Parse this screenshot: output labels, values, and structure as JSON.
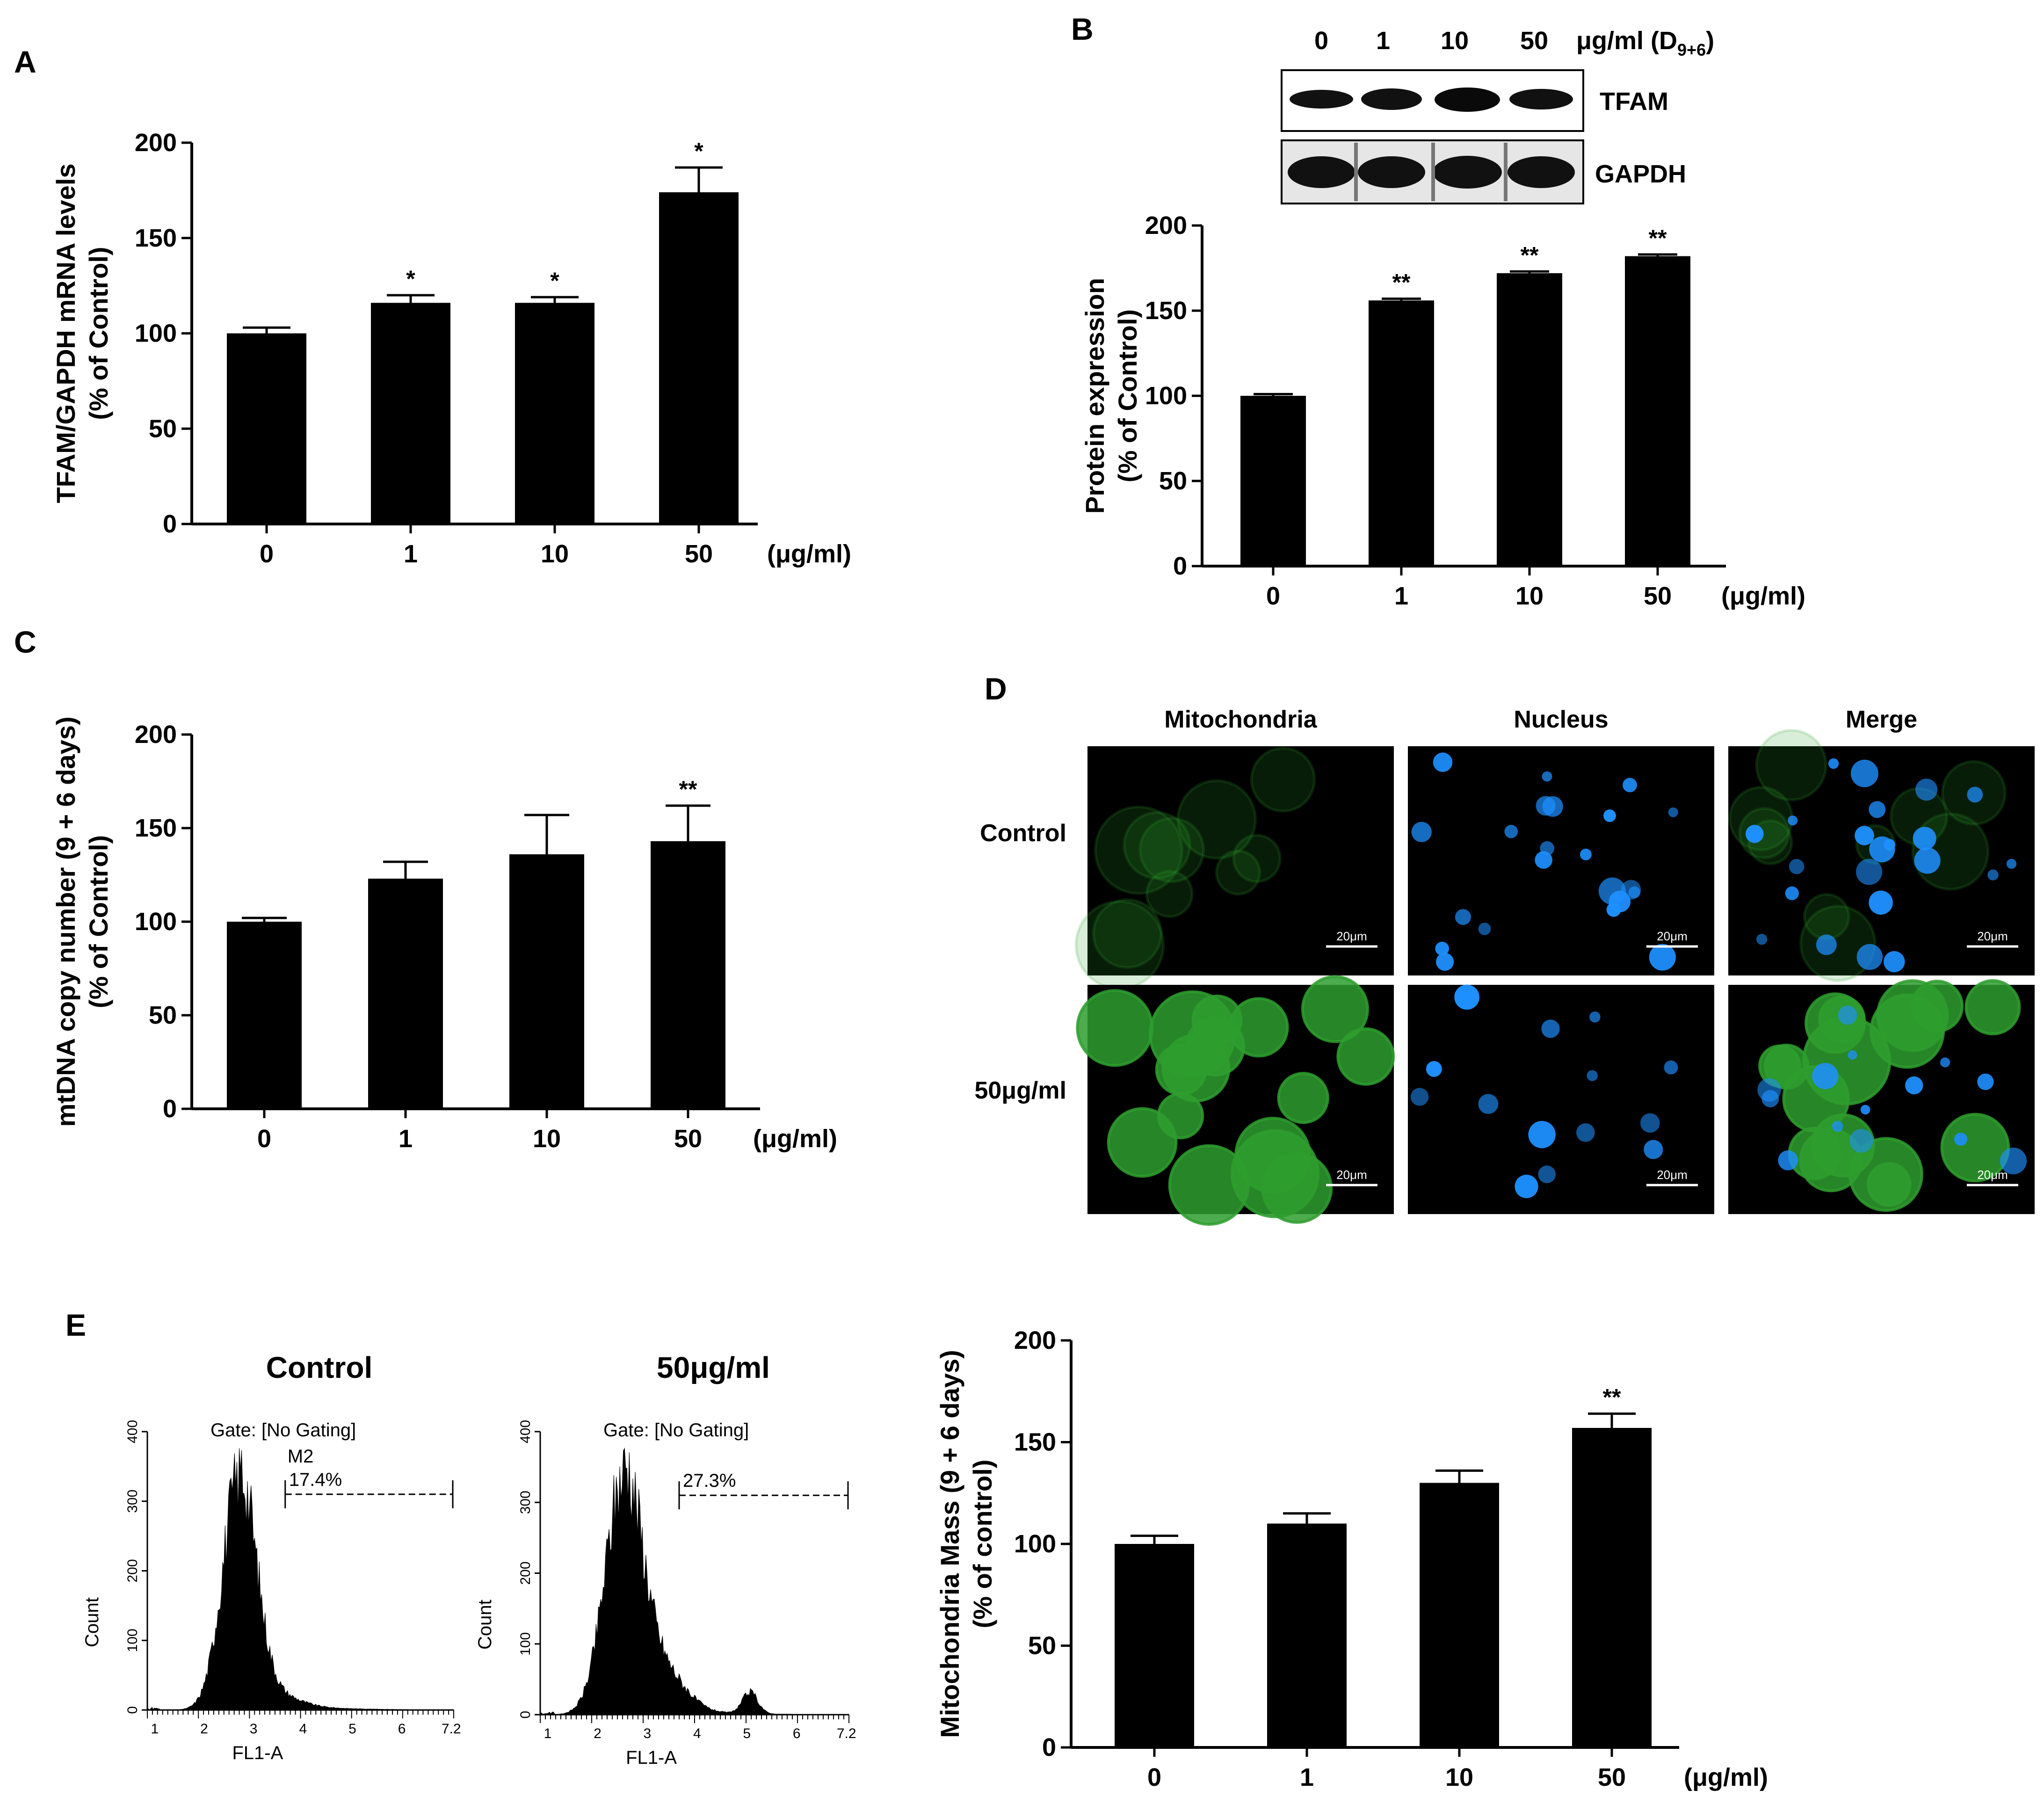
{
  "panels": {
    "a": "A",
    "b": "B",
    "c": "C",
    "d": "D",
    "e": "E"
  },
  "chart_data": [
    {
      "type": "bar",
      "panel": "A",
      "ylabel_line1": "TFAM/GAPDH mRNA levels",
      "ylabel_line2": "(% of Control)",
      "xlabel": "(μg/ml)",
      "categories": [
        "0",
        "1",
        "10",
        "50"
      ],
      "values": [
        100,
        116,
        116,
        174
      ],
      "errors": [
        3,
        4,
        3,
        13
      ],
      "significance": [
        "",
        "*",
        "*",
        "*"
      ],
      "ylim": [
        0,
        200
      ],
      "yticks": [
        "0",
        "50",
        "100",
        "150",
        "200"
      ]
    },
    {
      "type": "bar",
      "panel": "B",
      "ylabel_line1": "Protein expression",
      "ylabel_line2": "(% of Control)",
      "xlabel": "(μg/ml)",
      "categories": [
        "0",
        "1",
        "10",
        "50"
      ],
      "values": [
        100,
        156,
        172,
        182
      ],
      "errors": [
        1,
        1,
        1,
        1
      ],
      "significance": [
        "",
        "**",
        "**",
        "**"
      ],
      "ylim": [
        0,
        200
      ],
      "yticks": [
        "0",
        "50",
        "100",
        "150",
        "200"
      ]
    },
    {
      "type": "bar",
      "panel": "C",
      "ylabel_line1": "mtDNA copy number (9 + 6 days)",
      "ylabel_line2": "(% of Control)",
      "xlabel": "(μg/ml)",
      "categories": [
        "0",
        "1",
        "10",
        "50"
      ],
      "values": [
        100,
        123,
        136,
        143
      ],
      "errors": [
        2,
        9,
        21,
        19
      ],
      "significance": [
        "",
        "",
        "",
        "**"
      ],
      "ylim": [
        0,
        200
      ],
      "yticks": [
        "0",
        "50",
        "100",
        "150",
        "200"
      ]
    },
    {
      "type": "bar",
      "panel": "E",
      "ylabel_line1": "Mitochondria Mass (9 + 6 days)",
      "ylabel_line2": "(% of control)",
      "xlabel": "(μg/ml)",
      "categories": [
        "0",
        "1",
        "10",
        "50"
      ],
      "values": [
        100,
        110,
        130,
        157
      ],
      "errors": [
        4,
        5,
        6,
        7
      ],
      "significance": [
        "",
        "",
        "",
        "**"
      ],
      "ylim": [
        0,
        200
      ],
      "yticks": [
        "0",
        "50",
        "100",
        "150",
        "200"
      ]
    }
  ],
  "blot": {
    "doses": [
      "0",
      "1",
      "10",
      "50"
    ],
    "unit_main": "μg/ml (D",
    "unit_sub": "9+6",
    "unit_close": ")",
    "bands": [
      "TFAM",
      "GAPDH"
    ]
  },
  "microscopy": {
    "columns": [
      "Mitochondria",
      "Nucleus",
      "Merge"
    ],
    "rows": [
      "Control",
      "50μg/ml"
    ],
    "scale_bar": "20μm",
    "colors": {
      "mitochondria": "#2e9e2e",
      "nucleus": "#1e90ff",
      "background": "#000000"
    }
  },
  "flow": [
    {
      "title": "Control",
      "gate": "Gate: [No Gating]",
      "marker": "M2",
      "percent": "17.4%",
      "ylabel": "Count",
      "xlabel": "FL1-A",
      "yticks": [
        "0",
        "100",
        "200",
        "300",
        "400"
      ],
      "xticks": [
        "1",
        "2",
        "3",
        "4",
        "5",
        "6",
        "7.2"
      ]
    },
    {
      "title": "50μg/ml",
      "gate": "Gate: [No Gating]",
      "marker": "",
      "percent": "27.3%",
      "ylabel": "Count",
      "xlabel": "FL1-A",
      "yticks": [
        "0",
        "100",
        "200",
        "300",
        "400"
      ],
      "xticks": [
        "1",
        "2",
        "3",
        "4",
        "5",
        "6",
        "7.2"
      ]
    }
  ]
}
